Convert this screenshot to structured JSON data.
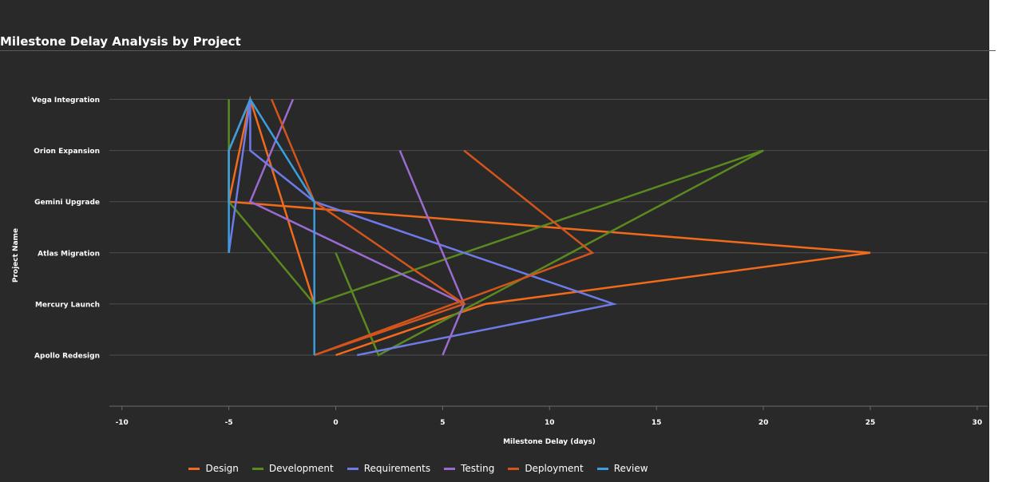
{
  "chart_data": {
    "type": "line",
    "title": "Milestone Delay Analysis by Project",
    "xlabel": "Milestone Delay (days)",
    "ylabel": "Project Name",
    "xlim": [
      -11,
      30.5
    ],
    "x_ticks": [
      -10,
      -5,
      0,
      5,
      10,
      15,
      20,
      25,
      30
    ],
    "categories": [
      "Apollo Redesign",
      "Mercury Launch",
      "Atlas Migration",
      "Gemini Upgrade",
      "Orion Expansion",
      "Vega Integration"
    ],
    "grid": "horizontal",
    "legend_position": "bottom",
    "series": [
      {
        "name": "Design",
        "color": "#f26a1b",
        "points": [
          [
            0,
            "Apollo Redesign"
          ],
          [
            7,
            "Mercury Launch"
          ],
          [
            25,
            "Atlas Migration"
          ],
          [
            -5,
            "Gemini Upgrade"
          ],
          [
            -4,
            "Vega Integration"
          ],
          [
            -1,
            "Mercury Launch"
          ],
          [
            -4,
            "Vega Integration"
          ],
          [
            -5,
            "Orion Expansion"
          ],
          [
            -5,
            "Gemini Upgrade"
          ]
        ]
      },
      {
        "name": "Development",
        "color": "#5a8a1f",
        "points": [
          [
            0,
            "Atlas Migration"
          ],
          [
            2,
            "Apollo Redesign"
          ],
          [
            20,
            "Orion Expansion"
          ],
          [
            -1,
            "Mercury Launch"
          ],
          [
            -5,
            "Gemini Upgrade"
          ],
          [
            -5,
            "Vega Integration"
          ]
        ]
      },
      {
        "name": "Requirements",
        "color": "#6d7be8",
        "points": [
          [
            1,
            "Apollo Redesign"
          ],
          [
            13,
            "Mercury Launch"
          ],
          [
            -1,
            "Gemini Upgrade"
          ],
          [
            -4,
            "Orion Expansion"
          ],
          [
            -4,
            "Vega Integration"
          ],
          [
            -5,
            "Atlas Migration"
          ]
        ]
      },
      {
        "name": "Testing",
        "color": "#9a6bd0",
        "points": [
          [
            3,
            "Orion Expansion"
          ],
          [
            6,
            "Mercury Launch"
          ],
          [
            5,
            "Apollo Redesign"
          ],
          [
            6,
            "Mercury Launch"
          ],
          [
            -4,
            "Gemini Upgrade"
          ],
          [
            -2,
            "Vega Integration"
          ]
        ]
      },
      {
        "name": "Deployment",
        "color": "#d4551c",
        "points": [
          [
            6,
            "Orion Expansion"
          ],
          [
            12,
            "Atlas Migration"
          ],
          [
            -1,
            "Apollo Redesign"
          ],
          [
            6,
            "Mercury Launch"
          ],
          [
            -1,
            "Gemini Upgrade"
          ],
          [
            -3,
            "Vega Integration"
          ]
        ]
      },
      {
        "name": "Review",
        "color": "#3c9ddf",
        "points": [
          [
            -1,
            "Apollo Redesign"
          ],
          [
            -1,
            "Gemini Upgrade"
          ],
          [
            -4,
            "Vega Integration"
          ],
          [
            -5,
            "Orion Expansion"
          ],
          [
            -5,
            "Atlas Migration"
          ]
        ]
      }
    ]
  }
}
